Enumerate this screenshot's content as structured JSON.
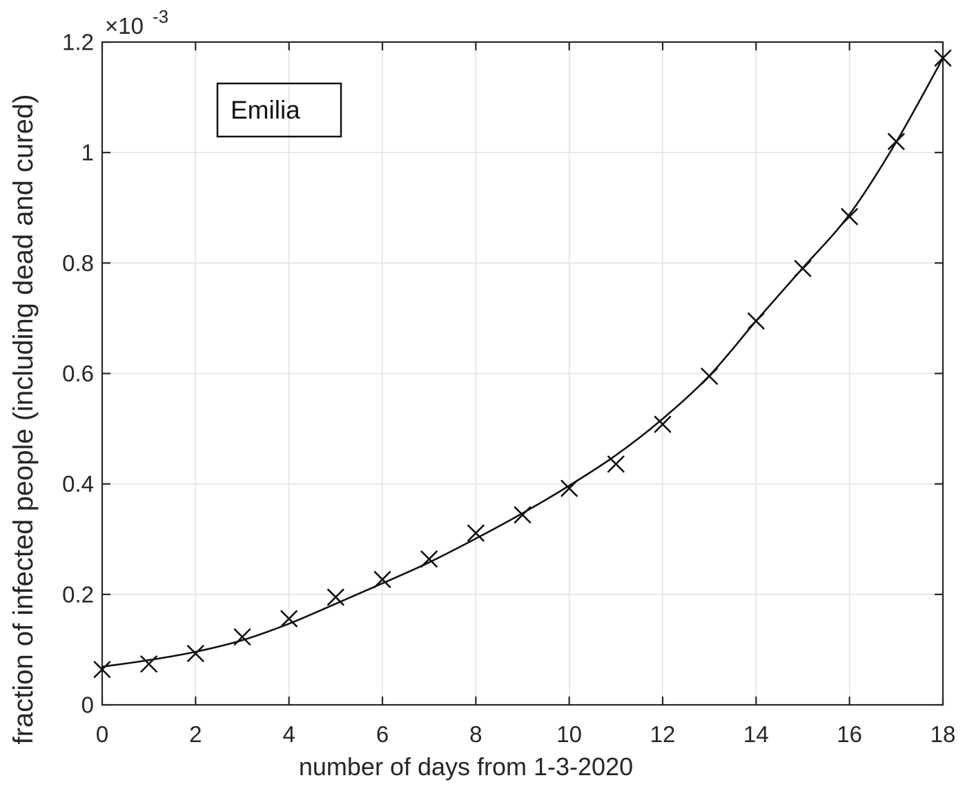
{
  "figure": {
    "background": "#ffffff",
    "axis_color": "#262626",
    "grid_color": "#e2e2e2",
    "data_color": "#111111"
  },
  "legend": {
    "label": "Emilia"
  },
  "axes": {
    "xlabel": "number of days from 1-3-2020",
    "ylabel": "fraction of infected people (including dead and cured)",
    "y_scale_base": "×10",
    "y_scale_exp": "-3"
  },
  "chart_data": {
    "type": "scatter",
    "title": "",
    "xlabel": "number of days from 1-3-2020",
    "ylabel": "fraction of infected people (including dead and cured)",
    "y_units": "values expressed in units of 10^-3 (axis multiplier ×10^-3)",
    "grid": true,
    "legend": {
      "label": "Emilia",
      "position": "upper-left-inside",
      "background": "transparent"
    },
    "xlim": [
      0,
      18
    ],
    "ylim": [
      0,
      1.2
    ],
    "xticks": [
      0,
      2,
      4,
      6,
      8,
      10,
      12,
      14,
      16,
      18
    ],
    "yticks": [
      0,
      0.2,
      0.4,
      0.6,
      0.8,
      1,
      1.2
    ],
    "xtick_labels": [
      "0",
      "2",
      "4",
      "6",
      "8",
      "10",
      "12",
      "14",
      "16",
      "18"
    ],
    "ytick_labels": [
      "0",
      "0.2",
      "0.4",
      "0.6",
      "0.8",
      "1",
      "1.2"
    ],
    "x": [
      0,
      1,
      2,
      3,
      4,
      5,
      6,
      7,
      8,
      9,
      10,
      11,
      12,
      13,
      14,
      15,
      16,
      17,
      18
    ],
    "series": [
      {
        "name": "reported data (x markers)",
        "style": "x-marker",
        "values": [
          0.064,
          0.074,
          0.093,
          0.123,
          0.156,
          0.195,
          0.227,
          0.264,
          0.311,
          0.344,
          0.392,
          0.436,
          0.508,
          0.595,
          0.695,
          0.79,
          0.884,
          1.02,
          1.171
        ]
      },
      {
        "name": "fitted curve (solid line)",
        "style": "solid-line",
        "values": [
          0.069,
          0.081,
          0.096,
          0.117,
          0.147,
          0.183,
          0.22,
          0.258,
          0.301,
          0.347,
          0.397,
          0.452,
          0.518,
          0.596,
          0.695,
          0.791,
          0.888,
          1.019,
          1.171
        ]
      }
    ]
  }
}
